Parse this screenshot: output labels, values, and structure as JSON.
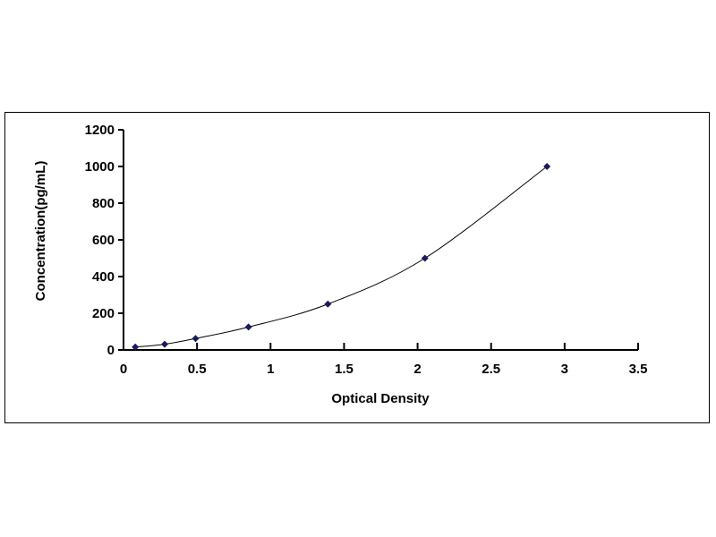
{
  "chart_data": {
    "type": "scatter",
    "title": "",
    "xlabel": "Optical Density",
    "ylabel": "Concentration(pg/mL)",
    "xlim": [
      0,
      3.5
    ],
    "ylim": [
      0,
      1200
    ],
    "xticks": [
      "0",
      "0.5",
      "1",
      "1.5",
      "2",
      "2.5",
      "3",
      "3.5"
    ],
    "yticks": [
      "0",
      "200",
      "400",
      "600",
      "800",
      "1000",
      "1200"
    ],
    "grid": false,
    "legend": "none",
    "trendline": "smooth curve",
    "marker": "diamond",
    "color": "#1a1a5e",
    "series": [
      {
        "x": [
          0.08,
          0.28,
          0.49,
          0.85,
          1.39,
          2.05,
          2.88
        ],
        "y": [
          15.6,
          31.2,
          62.5,
          125,
          250,
          500,
          1000
        ]
      }
    ]
  }
}
